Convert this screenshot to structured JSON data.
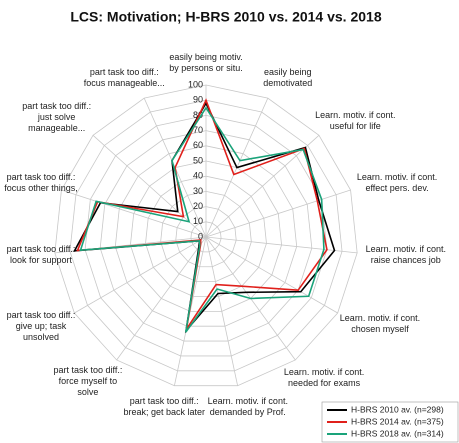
{
  "chart_data": {
    "type": "radar",
    "title": "LCS: Motivation; H-BRS 2010 vs. 2014 vs. 2018",
    "categories": [
      "easily being motiv. by persons or situ.",
      "easily being demotivated",
      "Learn. motiv. if cont. useful for life",
      "Learn. motiv. if cont. effect pers. dev.",
      "Learn. motiv. if cont. raise chances job",
      "Learn. motiv. if cont. chosen myself",
      "Learn. motiv. if cont. needed for exams",
      "Learn. motiv. if cont. demanded by Prof.",
      "part task too diff.: break; get back later",
      "part task too diff.: force myself to solve",
      "part task too diff.: give up; task unsolved",
      "part task too diff.: look for support",
      "part task too diff.: focus other things,",
      "part task too diff.: just solve manageable...",
      "part task too diff.: focus manageable..."
    ],
    "series": [
      {
        "name": "H-BRS 2010 av. (n=298)",
        "color": "#000000",
        "values": [
          88,
          50,
          88,
          78,
          85,
          72,
          45,
          38,
          63,
          8,
          5,
          87,
          73,
          25,
          55
        ]
      },
      {
        "name": "H-BRS 2014 av. (n=375)",
        "color": "#e0201b",
        "values": [
          90,
          45,
          87,
          77,
          80,
          70,
          40,
          32,
          62,
          6,
          4,
          85,
          75,
          20,
          50
        ]
      },
      {
        "name": "H-BRS 2018 av. (n=314)",
        "color": "#1aa37a",
        "values": [
          85,
          55,
          86,
          80,
          78,
          78,
          50,
          35,
          64,
          7,
          5,
          83,
          76,
          15,
          55
        ]
      }
    ],
    "rlim": [
      0,
      100
    ],
    "rticks": [
      0,
      10,
      20,
      30,
      40,
      50,
      60,
      70,
      80,
      90,
      100
    ],
    "grid": true,
    "legend": "lower right"
  }
}
